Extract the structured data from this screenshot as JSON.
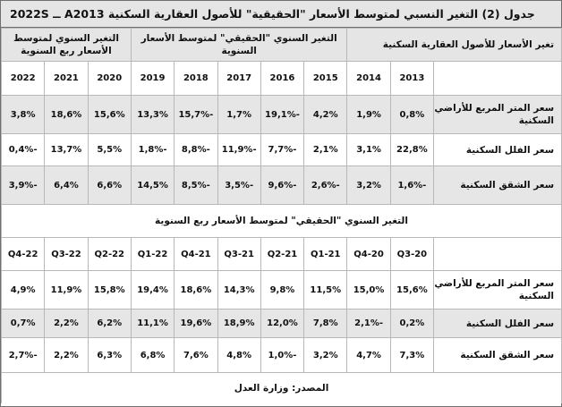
{
  "title": "جدول (2) التغير النسبي لمتوسط الأسعار \"الحقيقية\" للأصول العقارية السكنية A2013 ــ 2022S",
  "group_headers": {
    "asset_change": "تغير الأسعار للأصول العقارية السكنية",
    "real_annual": "التغير السنوي \"الحقيقي\" لمتوسط الأسعار السنوية",
    "quarterly_annual": "التغير السنوي لمتوسط الأسعار ربع السنوية"
  },
  "years": [
    "2013",
    "2014",
    "2015",
    "2016",
    "2017",
    "2018",
    "2019",
    "2020",
    "2021",
    "2022"
  ],
  "annual_rows": [
    {
      "label": "سعر المتر المربع للأراضي السكنية",
      "values": [
        "0,8%",
        "1,9%",
        "4,2%",
        "-19,1%",
        "1,7%",
        "-15,7%",
        "13,3%",
        "15,6%",
        "18,6%",
        "3,8%"
      ]
    },
    {
      "label": "سعر الفلل السكنية",
      "values": [
        "22,8%",
        "3,1%",
        "2,1%",
        "-7,7%",
        "-11,9%",
        "-8,8%",
        "-1,8%",
        "5,5%",
        "13,7%",
        "-0,4%"
      ]
    },
    {
      "label": "سعر الشقق السكنية",
      "values": [
        "-1,6%",
        "3,2%",
        "-2,6%",
        "-9,6%",
        "-3,5%",
        "-8,5%",
        "14,5%",
        "6,6%",
        "6,4%",
        "-3,9%"
      ]
    }
  ],
  "quarterly_section_title": "التغير السنوي \"الحقيقي\" لمتوسط الأسعار ربع السنوية",
  "quarters": [
    "Q3-20",
    "Q4-20",
    "Q1-21",
    "21-Q2",
    "21-Q3",
    "21-Q4",
    "Q1-22",
    "Q2-22",
    "Q3-22",
    "Q4-22"
  ],
  "quarterly_rows": [
    {
      "label": "سعر المتر المربع للأراضي السكنية",
      "values": [
        "15,6%",
        "15,0%",
        "11,5%",
        "9,8%",
        "14,3%",
        "18,6%",
        "19,4%",
        "15,8%",
        "11,9%",
        "4,9%"
      ]
    },
    {
      "label": "سعر الفلل السكنية",
      "values": [
        "0,2%",
        "-2,1%",
        "7,8%",
        "12,0%",
        "18,9%",
        "19,6%",
        "11,1%",
        "6,2%",
        "2,2%",
        "0,7%"
      ]
    },
    {
      "label": "سعر الشقق السكنية",
      "values": [
        "7,3%",
        "4,7%",
        "3,2%",
        "-1,0%",
        "4,8%",
        "7,6%",
        "6,8%",
        "6,3%",
        "2,2%",
        "-2,7%"
      ]
    }
  ],
  "source": "المصدر: وزارة العدل"
}
